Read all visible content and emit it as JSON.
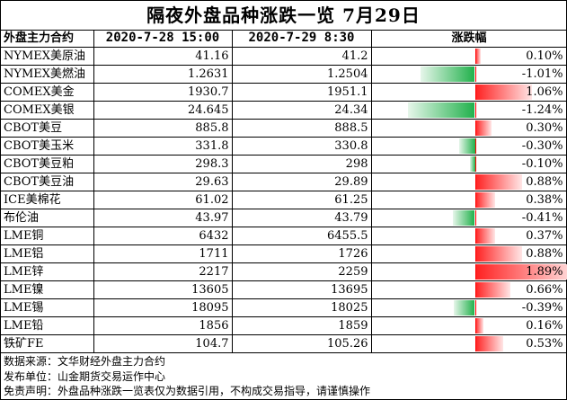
{
  "title": "隔夜外盘品种涨跌一览 7月29日",
  "headers": {
    "contract": "外盘主力合约",
    "prev": "2020-7-28 15:00",
    "curr": "2020-7-29 8:30",
    "change": "涨跌幅"
  },
  "rows": [
    {
      "name": "NYMEX美原油",
      "prev": "41.16",
      "curr": "41.2",
      "pct": "0.10%",
      "value": 0.1
    },
    {
      "name": "NYMEX美燃油",
      "prev": "1.2631",
      "curr": "1.2504",
      "pct": "-1.01%",
      "value": -1.01
    },
    {
      "name": "COMEX美金",
      "prev": "1930.7",
      "curr": "1951.1",
      "pct": "1.06%",
      "value": 1.06
    },
    {
      "name": "COMEX美银",
      "prev": "24.645",
      "curr": "24.34",
      "pct": "-1.24%",
      "value": -1.24
    },
    {
      "name": "CBOT美豆",
      "prev": "885.8",
      "curr": "888.5",
      "pct": "0.30%",
      "value": 0.3
    },
    {
      "name": "CBOT美玉米",
      "prev": "331.8",
      "curr": "330.8",
      "pct": "-0.30%",
      "value": -0.3
    },
    {
      "name": "CBOT美豆粕",
      "prev": "298.3",
      "curr": "298",
      "pct": "-0.10%",
      "value": -0.1
    },
    {
      "name": "CBOT美豆油",
      "prev": "29.63",
      "curr": "29.89",
      "pct": "0.88%",
      "value": 0.88
    },
    {
      "name": "ICE美棉花",
      "prev": "61.02",
      "curr": "61.25",
      "pct": "0.38%",
      "value": 0.38
    },
    {
      "name": "布伦油",
      "prev": "43.97",
      "curr": "43.79",
      "pct": "-0.41%",
      "value": -0.41
    },
    {
      "name": "LME铜",
      "prev": "6432",
      "curr": "6455.5",
      "pct": "0.37%",
      "value": 0.37
    },
    {
      "name": "LME铝",
      "prev": "1711",
      "curr": "1726",
      "pct": "0.88%",
      "value": 0.88
    },
    {
      "name": "LME锌",
      "prev": "2217",
      "curr": "2259",
      "pct": "1.89%",
      "value": 1.89
    },
    {
      "name": "LME镍",
      "prev": "13605",
      "curr": "13695",
      "pct": "0.66%",
      "value": 0.66
    },
    {
      "name": "LME锡",
      "prev": "18095",
      "curr": "18025",
      "pct": "-0.39%",
      "value": -0.39
    },
    {
      "name": "LME铅",
      "prev": "1856",
      "curr": "1859",
      "pct": "0.16%",
      "value": 0.16
    },
    {
      "name": "铁矿FE",
      "prev": "104.7",
      "curr": "105.26",
      "pct": "0.53%",
      "value": 0.53
    }
  ],
  "colors": {
    "positive": "#ff2020",
    "negative": "#22b14c",
    "zero_line": "#ff0000"
  },
  "footer": {
    "source": "数据来源：文华财经外盘主力合约",
    "publisher": "发布单位：山金期货交易运作中心",
    "disclaimer": "免责声明：外盘品种涨跌一览表仅为数据引用，不构成交易指导，请谨慎操作"
  }
}
